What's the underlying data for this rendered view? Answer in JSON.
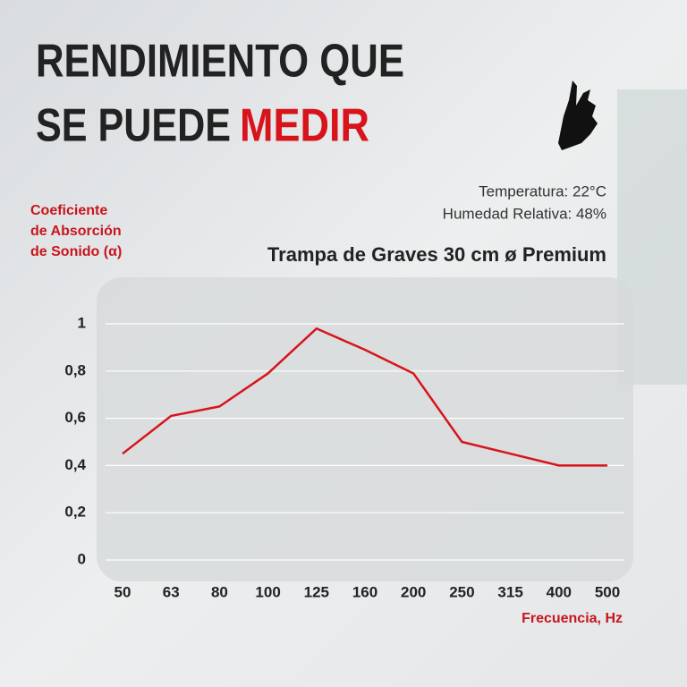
{
  "headline": {
    "line1": "RENDIMIENTO QUE",
    "line2": "SE PUEDE",
    "highlight": "MEDIR"
  },
  "chart_data": {
    "type": "line",
    "title": "Trampa de Graves 30 cm ø Premium",
    "annotations": [
      "Temperatura: 22°C",
      "Humedad Relativa: 48%"
    ],
    "ylabel": [
      "Coeficiente",
      "de Absorción",
      "de Sonido (α)"
    ],
    "xlabel": "Frecuencia, Hz",
    "categories": [
      "50",
      "63",
      "80",
      "100",
      "125",
      "160",
      "200",
      "250",
      "315",
      "400",
      "500"
    ],
    "series": [
      {
        "name": "Trampa de Graves 30 cm ø Premium",
        "color": "#d7141c",
        "values": [
          0.45,
          0.61,
          0.65,
          0.79,
          0.98,
          0.89,
          0.79,
          0.5,
          0.45,
          0.4,
          0.4
        ]
      }
    ],
    "ylim": [
      0,
      1
    ],
    "yticks": [
      0,
      {
        "value": 0.2,
        "label": "0,2"
      },
      {
        "value": 0.4,
        "label": "0,4"
      },
      {
        "value": 0.6,
        "label": "0,6"
      },
      {
        "value": 0.8,
        "label": "0,8"
      },
      1
    ],
    "grid": true
  }
}
